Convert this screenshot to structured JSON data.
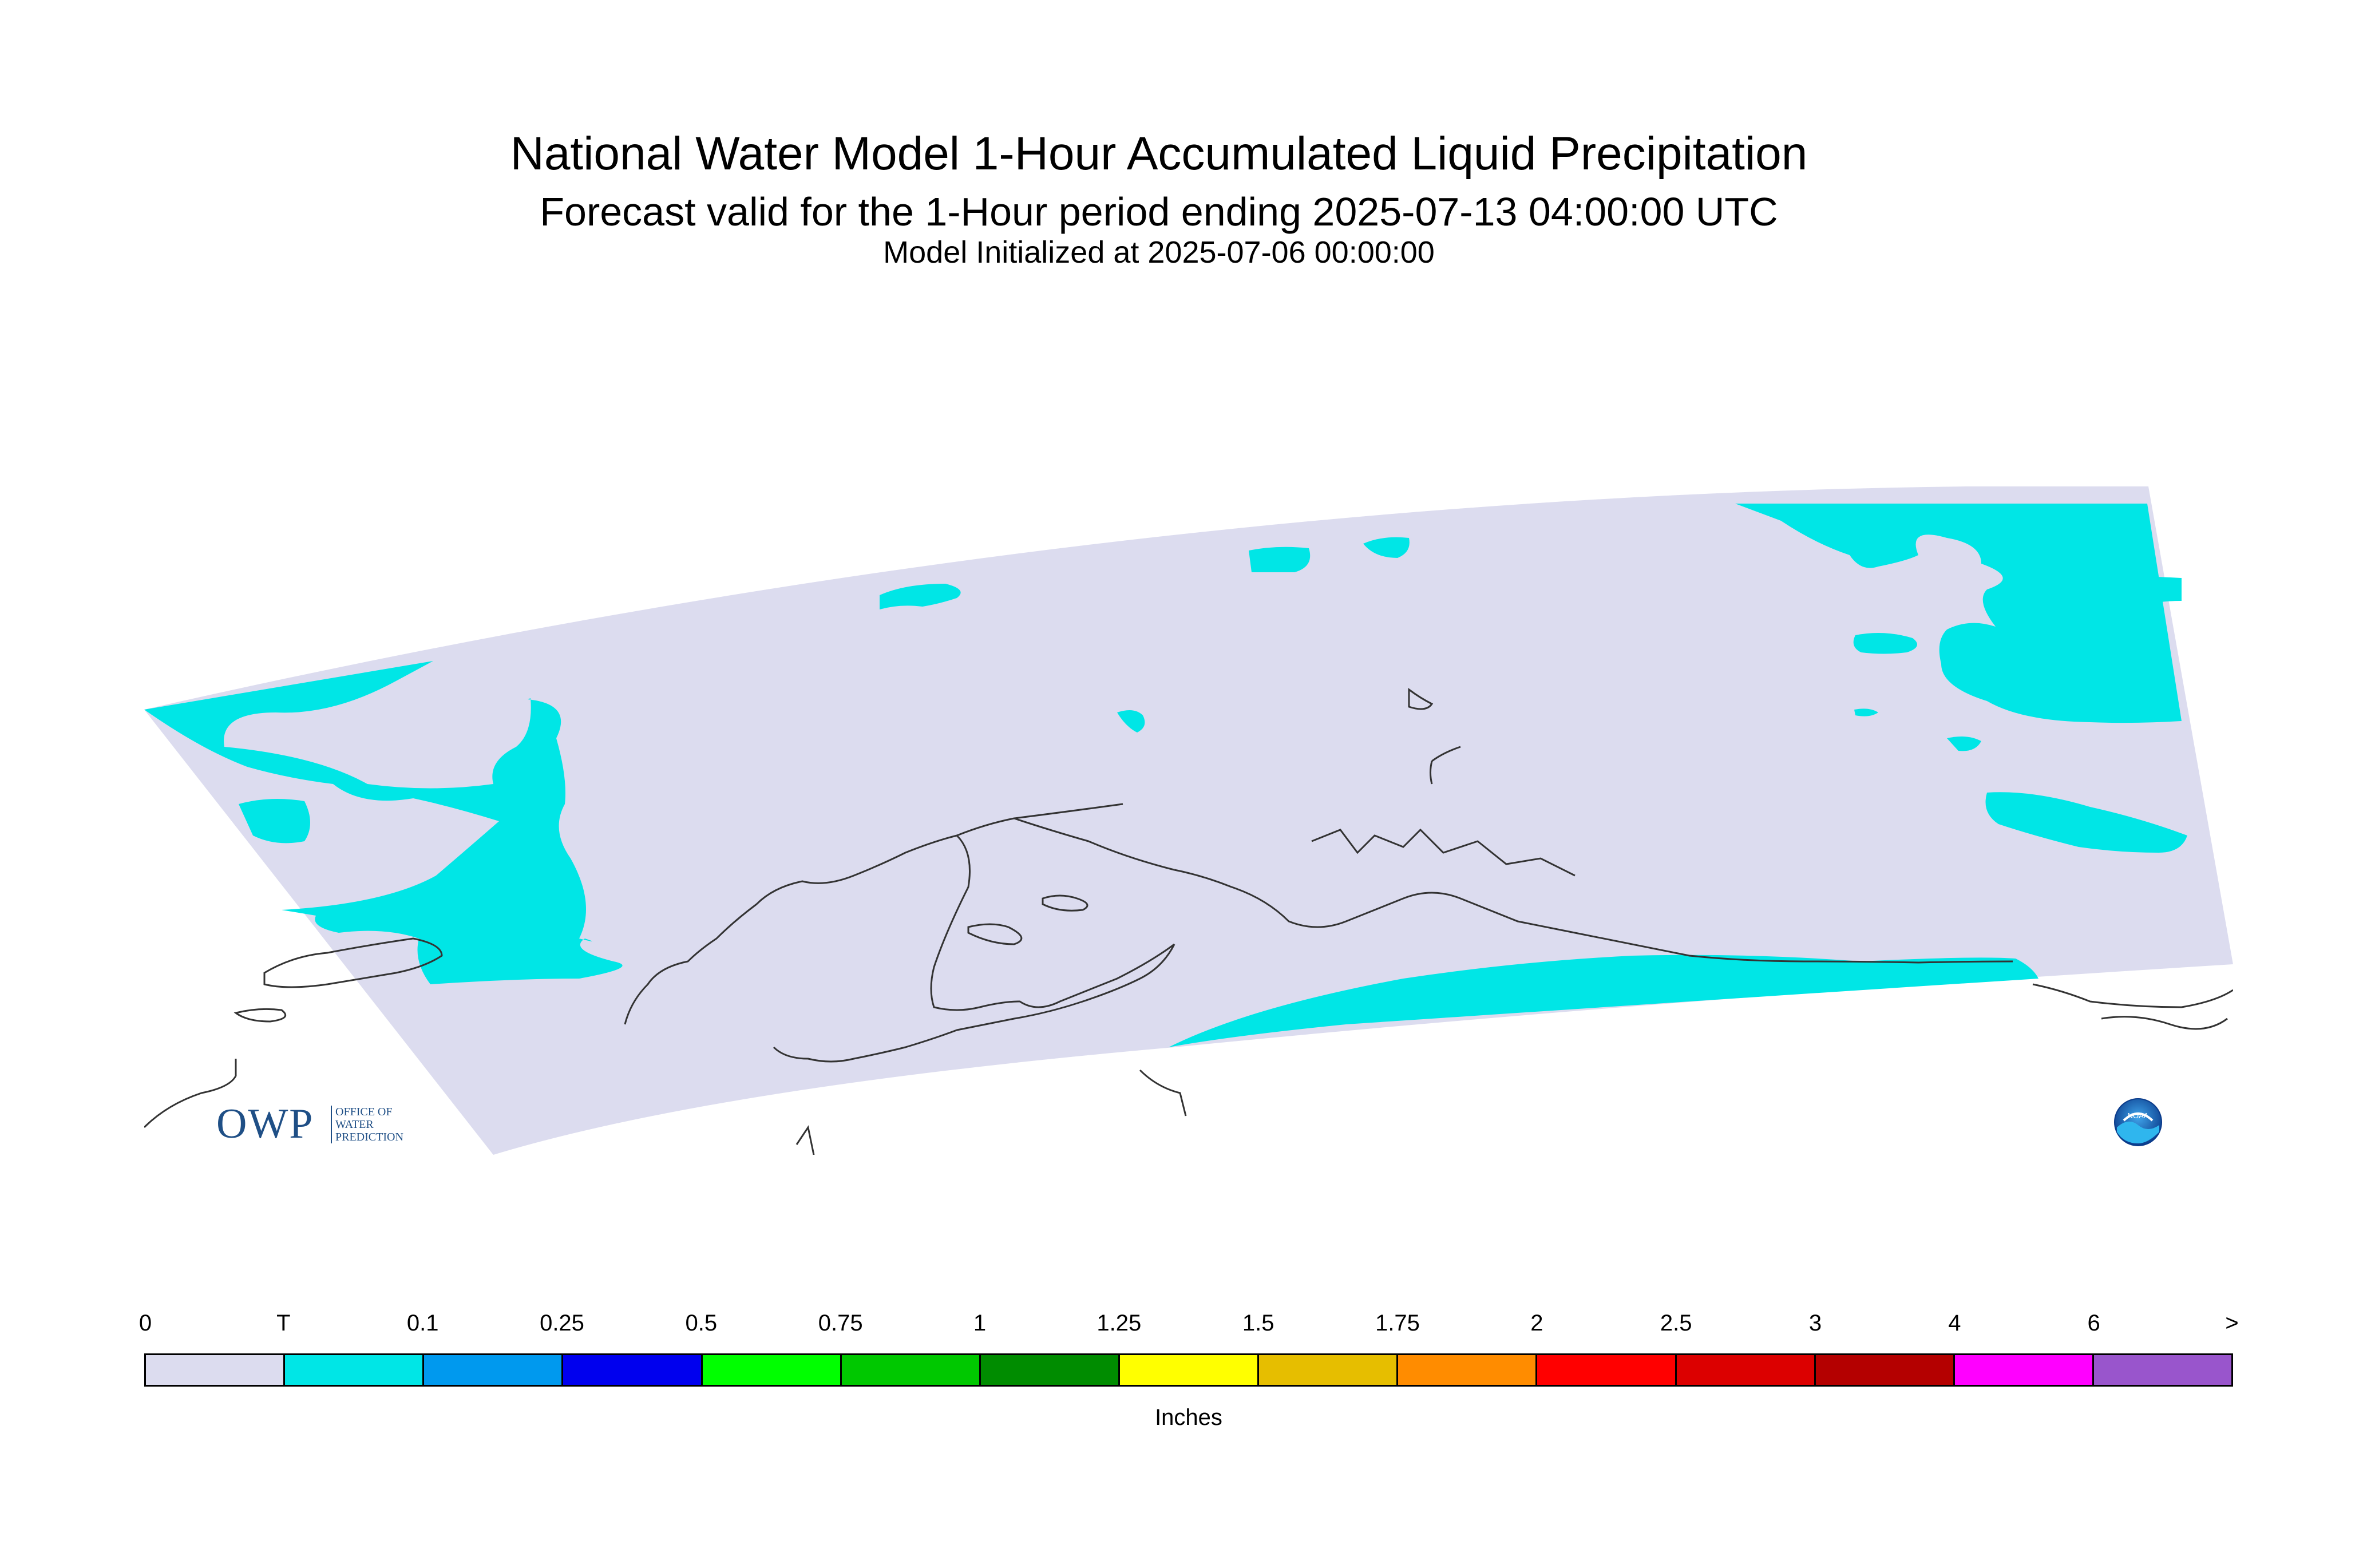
{
  "header": {
    "title": "National Water Model 1-Hour Accumulated Liquid Precipitation",
    "subtitle": "Forecast valid for the 1-Hour period ending 2025-07-13 04:00:00 UTC",
    "init": "Model Initialized at 2025-07-06 00:00:00"
  },
  "logos": {
    "owp_letters": "OWP",
    "owp_text_line1": "OFFICE OF",
    "owp_text_line2": "WATER",
    "owp_text_line3": "PREDICTION",
    "noaa_text": "NOAA"
  },
  "legend": {
    "unit": "Inches",
    "ticks": [
      "0",
      "T",
      "0.1",
      "0.25",
      "0.5",
      "0.75",
      "1",
      "1.25",
      "1.5",
      "1.75",
      "2",
      "2.5",
      "3",
      "4",
      "6",
      ">"
    ],
    "colors": [
      "#dcdcef",
      "#00e6e6",
      "#0099ee",
      "#0000ee",
      "#00ff00",
      "#00c800",
      "#008c00",
      "#ffff00",
      "#e6be00",
      "#ff8c00",
      "#ff0000",
      "#dc0000",
      "#b40000",
      "#ff00ff",
      "#9955cc"
    ]
  },
  "map": {
    "domain_color": "#dcdcef",
    "trace_color": "#00e6e6",
    "coast_color": "#333333"
  }
}
